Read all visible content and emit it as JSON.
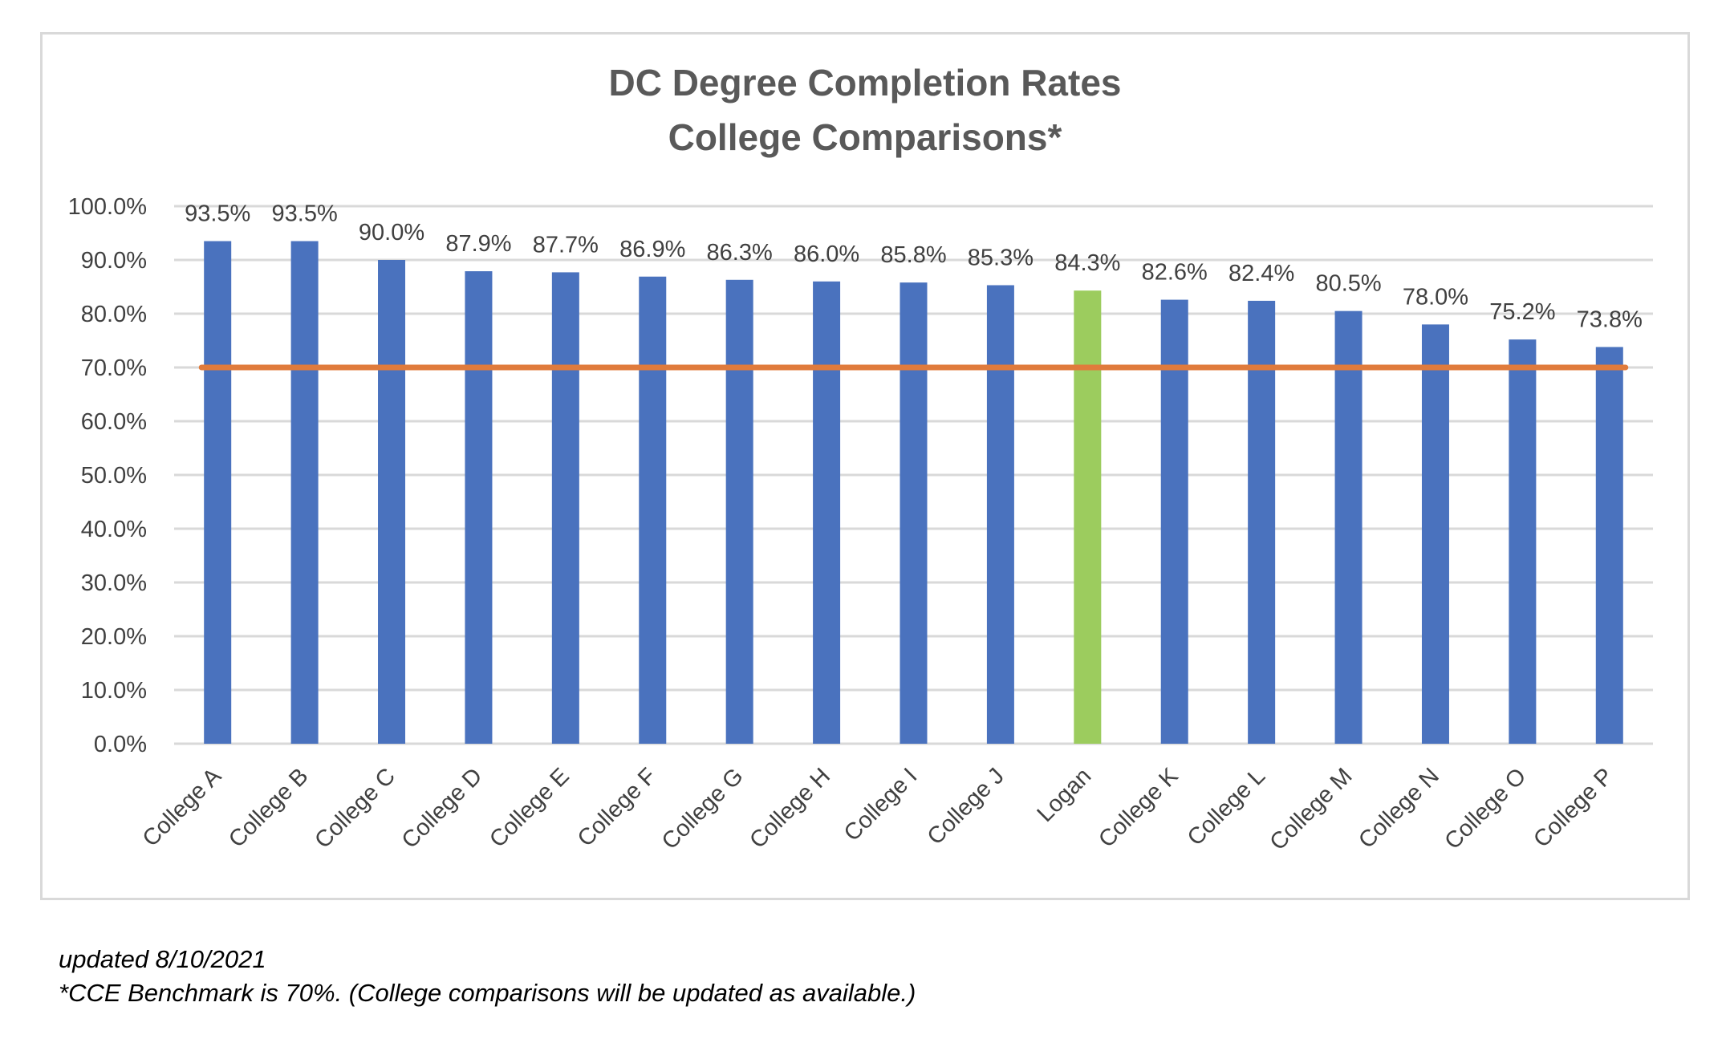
{
  "chart_data": {
    "type": "bar",
    "title": [
      "DC Degree Completion Rates",
      "College Comparisons*"
    ],
    "categories": [
      "College A",
      "College B",
      "College C",
      "College D",
      "College E",
      "College F",
      "College G",
      "College H",
      "College I",
      "College J",
      "Logan",
      "College K",
      "College L",
      "College M",
      "College N",
      "College O",
      "College P"
    ],
    "values": [
      93.5,
      93.5,
      90.0,
      87.9,
      87.7,
      86.9,
      86.3,
      86.0,
      85.8,
      85.3,
      84.3,
      82.6,
      82.4,
      80.5,
      78.0,
      75.2,
      73.8
    ],
    "data_labels": [
      "93.5%",
      "93.5%",
      "90.0%",
      "87.9%",
      "87.7%",
      "86.9%",
      "86.3%",
      "86.0%",
      "85.8%",
      "85.3%",
      "84.3%",
      "82.6%",
      "82.4%",
      "80.5%",
      "78.0%",
      "75.2%",
      "73.8%"
    ],
    "highlight_category": "Logan",
    "benchmark": 70,
    "ylim": [
      0,
      100
    ],
    "y_ticks": [
      0,
      10,
      20,
      30,
      40,
      50,
      60,
      70,
      80,
      90,
      100
    ],
    "y_tick_labels": [
      "0.0%",
      "10.0%",
      "20.0%",
      "30.0%",
      "40.0%",
      "50.0%",
      "60.0%",
      "70.0%",
      "80.0%",
      "90.0%",
      "100.0%"
    ],
    "xlabel": "",
    "ylabel": "",
    "grid": true,
    "legend": "none",
    "colors": {
      "bar": "#4a72be",
      "highlight": "#9ccc5e",
      "benchmark": "#e07b3c",
      "grid": "#d9d9d9",
      "title": "#595959",
      "text": "#404040"
    }
  },
  "footnotes": {
    "updated": "updated 8/10/2021",
    "benchmark_note": "*CCE Benchmark is 70%. (College comparisons will be updated as available.)"
  }
}
